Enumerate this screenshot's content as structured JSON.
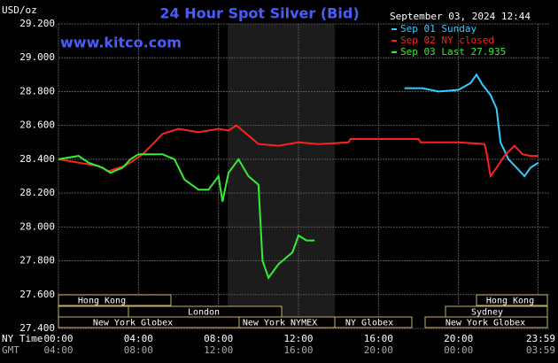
{
  "chart_data": {
    "type": "line",
    "title": "24 Hour Spot Silver (Bid)",
    "website": "www.kitco.com",
    "timestamp": "September 03, 2024 12:44",
    "y_unit": "USD/oz",
    "x_label": "NY Time",
    "x2_label": "GMT",
    "xlim": [
      0,
      24
    ],
    "ylim": [
      27.4,
      29.2
    ],
    "yticks": [
      {
        "value": 27.4,
        "label": "27.400"
      },
      {
        "value": 27.6,
        "label": "27.600"
      },
      {
        "value": 27.8,
        "label": "27.800"
      },
      {
        "value": 28.0,
        "label": "28.000"
      },
      {
        "value": 28.2,
        "label": "28.200"
      },
      {
        "value": 28.4,
        "label": "28.400"
      },
      {
        "value": 28.6,
        "label": "28.600"
      },
      {
        "value": 28.8,
        "label": "28.800"
      },
      {
        "value": 29.0,
        "label": "29.000"
      },
      {
        "value": 29.2,
        "label": "29.200"
      }
    ],
    "xticks": [
      {
        "value": 0,
        "label": "00:00"
      },
      {
        "value": 4,
        "label": "04:00"
      },
      {
        "value": 8,
        "label": "08:00"
      },
      {
        "value": 12,
        "label": "12:00"
      },
      {
        "value": 16,
        "label": "16:00"
      },
      {
        "value": 20,
        "label": "20:00"
      },
      {
        "value": 23.98,
        "label": "23:59"
      }
    ],
    "gmt_labels": [
      "04:00",
      "08:00",
      "12:00",
      "16:00",
      "20:00",
      "00:00",
      "03:59"
    ],
    "grid": true,
    "series": [
      {
        "name": "Sep 01 Sunday",
        "color": "#33ccff",
        "x": [
          17.3,
          18.2,
          19,
          20,
          20.6,
          20.9,
          21.2,
          21.6,
          21.9,
          22.1,
          22.5,
          22.9,
          23.3,
          23.6,
          24
        ],
        "values": [
          28.82,
          28.82,
          28.8,
          28.81,
          28.85,
          28.9,
          28.84,
          28.78,
          28.7,
          28.5,
          28.4,
          28.35,
          28.3,
          28.35,
          28.38
        ]
      },
      {
        "name": "Sep 02 NY closed",
        "color": "#ff2020",
        "x": [
          0,
          1,
          2,
          2.5,
          3.3,
          3.6,
          4.2,
          4.8,
          5.2,
          6,
          7,
          8,
          8.5,
          8.9,
          9.4,
          10,
          11,
          12,
          13,
          14.5,
          14.6,
          18,
          18.1,
          20,
          21.3,
          21.4,
          21.6,
          21.9,
          22.3,
          22.8,
          23.2,
          23.6,
          24
        ],
        "values": [
          28.4,
          28.38,
          28.36,
          28.33,
          28.36,
          28.38,
          28.43,
          28.5,
          28.55,
          28.58,
          28.56,
          28.58,
          28.57,
          28.6,
          28.55,
          28.49,
          28.48,
          28.5,
          28.49,
          28.5,
          28.52,
          28.52,
          28.5,
          28.5,
          28.49,
          28.44,
          28.3,
          28.35,
          28.42,
          28.48,
          28.43,
          28.42,
          28.42
        ]
      },
      {
        "name": "Sep 03 Last 27.935",
        "color": "#33ee33",
        "x": [
          0,
          1,
          1.5,
          2.2,
          2.6,
          3.2,
          3.6,
          4,
          5.2,
          5.8,
          6.3,
          7,
          7.5,
          8,
          8.2,
          8.5,
          9,
          9.5,
          10,
          10.2,
          10.5,
          11,
          11.7,
          12,
          12.4,
          12.8
        ],
        "values": [
          28.4,
          28.42,
          28.38,
          28.35,
          28.32,
          28.35,
          28.4,
          28.43,
          28.43,
          28.4,
          28.28,
          28.22,
          28.22,
          28.3,
          28.15,
          28.32,
          28.4,
          28.3,
          28.25,
          27.8,
          27.7,
          27.78,
          27.85,
          27.95,
          27.92,
          27.92
        ]
      }
    ],
    "sessions": [
      "Hong Kong",
      "London",
      "New York Globex",
      "New York NYMEX",
      "NY Globex",
      "Hong Kong",
      "Sydney",
      "New York Globex"
    ]
  }
}
